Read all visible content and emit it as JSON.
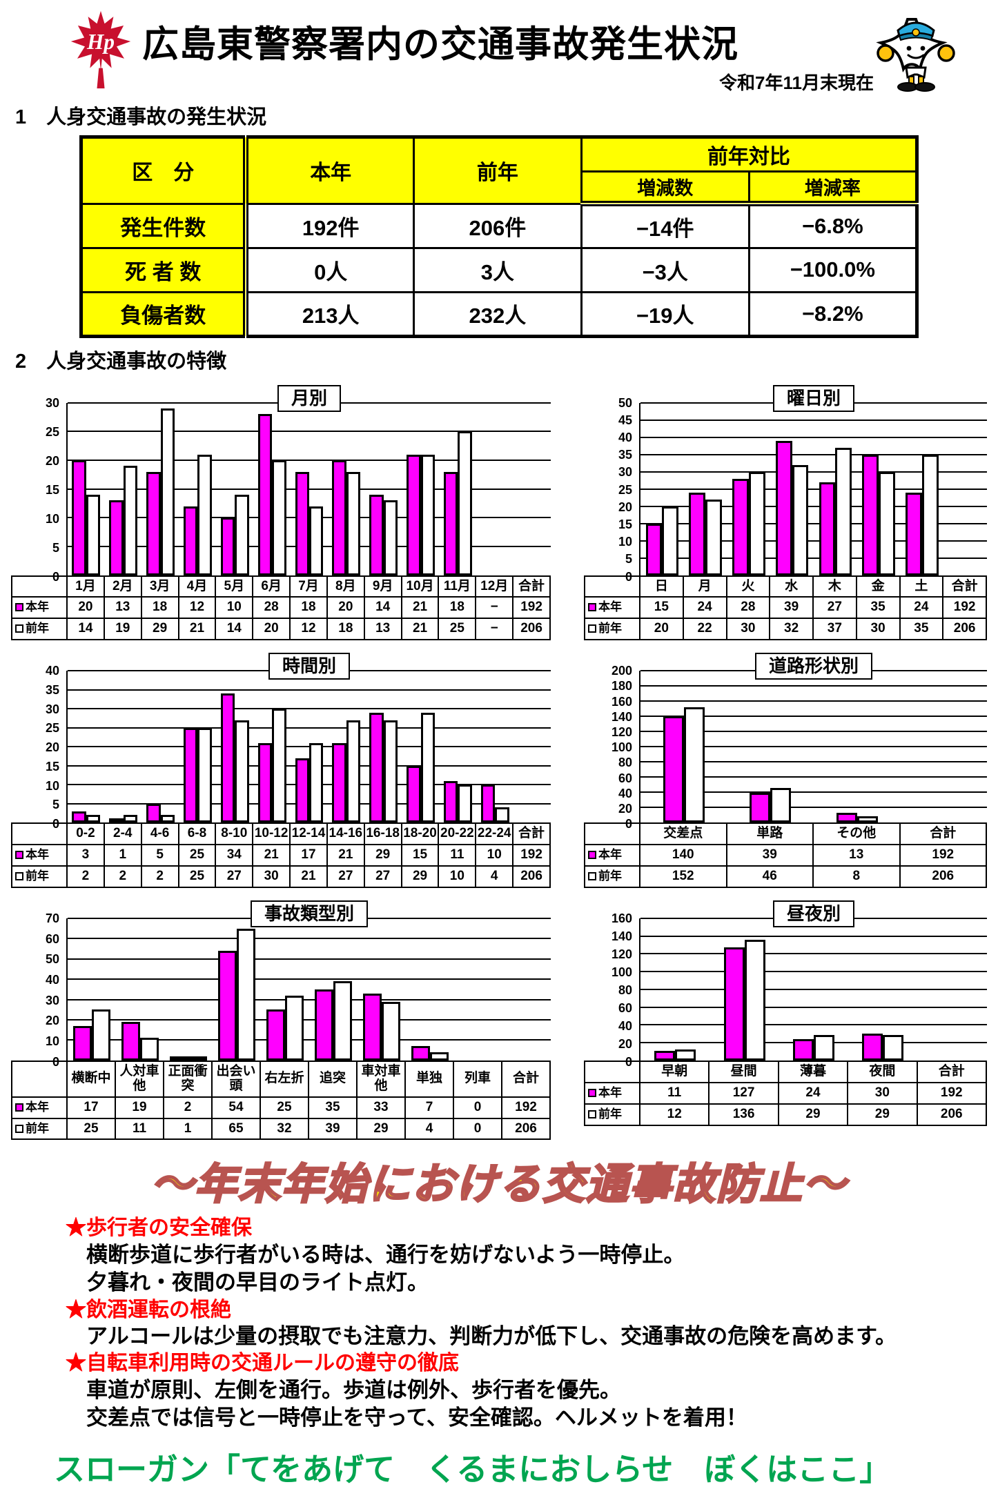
{
  "header": {
    "title": "広島東警察署内の交通事故発生状況",
    "date_note": "令和7年11月末現在",
    "logo_text": "Hp"
  },
  "colors": {
    "bar_current": "#FF00FF",
    "bar_previous": "#FFFFFF",
    "table_header_bg": "#FFFF00",
    "heading_red": "#FF0000",
    "banner_fill": "#FFEE00",
    "banner_outline": "#B85450",
    "slogan_green": "#00A550",
    "logo_red": "#C8102E",
    "mascot_cap": "#2AACDE"
  },
  "section1": {
    "heading": "1　人身交通事故の発生状況",
    "summary_table": {
      "headers": {
        "kubun": "区　分",
        "honnen": "本年",
        "zennen": "前年",
        "taihi": "前年対比",
        "zogensu": "増減数",
        "zogenritsu": "増減率"
      },
      "rows": [
        {
          "label": "発生件数",
          "honnen": "192件",
          "zennen": "206件",
          "diff": "−14件",
          "rate": "−6.8%"
        },
        {
          "label": "死 者 数",
          "honnen": "0人",
          "zennen": "3人",
          "diff": "−3人",
          "rate": "−100.0%"
        },
        {
          "label": "負傷者数",
          "honnen": "213人",
          "zennen": "232人",
          "diff": "−19人",
          "rate": "−8.2%"
        }
      ]
    }
  },
  "section2": {
    "heading": "2　人身交通事故の特徴"
  },
  "chart_data": [
    {
      "id": "monthly",
      "type": "bar",
      "title": "月別",
      "ylim": [
        0,
        30
      ],
      "ystep": 5,
      "grid": true,
      "total_label": "合計",
      "categories": [
        "1月",
        "2月",
        "3月",
        "4月",
        "5月",
        "6月",
        "7月",
        "8月",
        "9月",
        "10月",
        "11月",
        "12月"
      ],
      "series": [
        {
          "name": "本年",
          "color": "#FF00FF",
          "values": [
            20,
            13,
            18,
            12,
            10,
            28,
            18,
            20,
            14,
            21,
            18,
            "−"
          ],
          "total": 192
        },
        {
          "name": "前年",
          "color": "#FFFFFF",
          "values": [
            14,
            19,
            29,
            21,
            14,
            20,
            12,
            18,
            13,
            21,
            25,
            "−"
          ],
          "total": 206
        }
      ]
    },
    {
      "id": "weekday",
      "type": "bar",
      "title": "曜日別",
      "ylim": [
        0,
        50
      ],
      "ystep": 5,
      "grid": true,
      "total_label": "合計",
      "categories": [
        "日",
        "月",
        "火",
        "水",
        "木",
        "金",
        "土"
      ],
      "series": [
        {
          "name": "本年",
          "color": "#FF00FF",
          "values": [
            15,
            24,
            28,
            39,
            27,
            35,
            24
          ],
          "total": 192
        },
        {
          "name": "前年",
          "color": "#FFFFFF",
          "values": [
            20,
            22,
            30,
            32,
            37,
            30,
            35
          ],
          "total": 206
        }
      ]
    },
    {
      "id": "hourly",
      "type": "bar",
      "title": "時間別",
      "ylim": [
        0,
        40
      ],
      "ystep": 5,
      "grid": true,
      "total_label": "合計",
      "categories": [
        "0-2",
        "2-4",
        "4-6",
        "6-8",
        "8-10",
        "10-12",
        "12-14",
        "14-16",
        "16-18",
        "18-20",
        "20-22",
        "22-24"
      ],
      "series": [
        {
          "name": "本年",
          "color": "#FF00FF",
          "values": [
            3,
            1,
            5,
            25,
            34,
            21,
            17,
            21,
            29,
            15,
            11,
            10
          ],
          "total": 192
        },
        {
          "name": "前年",
          "color": "#FFFFFF",
          "values": [
            2,
            2,
            2,
            25,
            27,
            30,
            21,
            27,
            27,
            29,
            10,
            4
          ],
          "total": 206
        }
      ]
    },
    {
      "id": "road-shape",
      "type": "bar",
      "title": "道路形状別",
      "ylim": [
        0,
        200
      ],
      "ystep": 20,
      "grid": true,
      "total_label": "合計",
      "categories": [
        "交差点",
        "単路",
        "その他"
      ],
      "series": [
        {
          "name": "本年",
          "color": "#FF00FF",
          "values": [
            140,
            39,
            13
          ],
          "total": 192
        },
        {
          "name": "前年",
          "color": "#FFFFFF",
          "values": [
            152,
            46,
            8
          ],
          "total": 206
        }
      ]
    },
    {
      "id": "accident-type",
      "type": "bar",
      "title": "事故類型別",
      "ylim": [
        0,
        70
      ],
      "ystep": 10,
      "grid": true,
      "total_label": "合計",
      "categories": [
        "横断中",
        "人対車他",
        "正面衝突",
        "出会い頭",
        "右左折",
        "追突",
        "車対車他",
        "単独",
        "列車"
      ],
      "series": [
        {
          "name": "本年",
          "color": "#FF00FF",
          "values": [
            17,
            19,
            2,
            54,
            25,
            35,
            33,
            7,
            0
          ],
          "total": 192
        },
        {
          "name": "前年",
          "color": "#FFFFFF",
          "values": [
            25,
            11,
            1,
            65,
            32,
            39,
            29,
            4,
            0
          ],
          "total": 206
        }
      ]
    },
    {
      "id": "day-night",
      "type": "bar",
      "title": "昼夜別",
      "ylim": [
        0,
        160
      ],
      "ystep": 20,
      "grid": true,
      "total_label": "合計",
      "categories": [
        "早朝",
        "昼間",
        "薄暮",
        "夜間"
      ],
      "series": [
        {
          "name": "本年",
          "color": "#FF00FF",
          "values": [
            11,
            127,
            24,
            30
          ],
          "total": 192
        },
        {
          "name": "前年",
          "color": "#FFFFFF",
          "values": [
            12,
            136,
            29,
            29
          ],
          "total": 206
        }
      ]
    }
  ],
  "campaign": {
    "banner": "～年末年始における交通事故防止～",
    "items": [
      {
        "heading": "★歩行者の安全確保",
        "lines": [
          "横断歩道に歩行者がいる時は、通行を妨げないよう一時停止。",
          "夕暮れ・夜間の早目のライト点灯。"
        ]
      },
      {
        "heading": "★飲酒運転の根絶",
        "lines": [
          "アルコールは少量の摂取でも注意力、判断力が低下し、交通事故の危険を高めます。"
        ]
      },
      {
        "heading": "★自転車利用時の交通ルールの遵守の徹底",
        "lines": [
          "車道が原則、左側を通行。歩道は例外、歩行者を優先。",
          "交差点では信号と一時停止を守って、安全確認。ヘルメットを着用！"
        ]
      }
    ],
    "slogan": "スローガン「てをあげて　くるまにおしらせ　ぼくはここ」"
  }
}
